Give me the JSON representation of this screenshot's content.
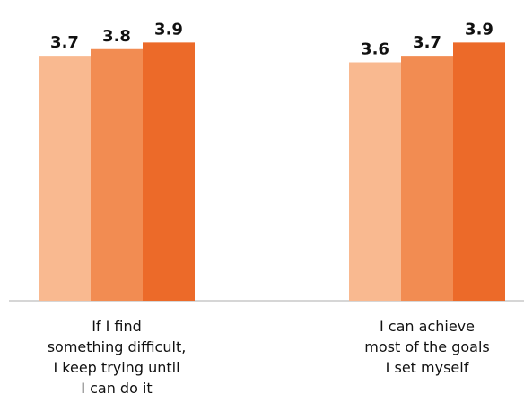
{
  "chart_data": {
    "type": "bar",
    "categories": [
      "If I find\nsomething difficult,\nI keep trying until\nI can do it",
      "I can achieve\nmost of the goals\nI set myself"
    ],
    "series": [
      {
        "color": "#f9b990",
        "values": [
          3.7,
          3.6
        ]
      },
      {
        "color": "#f28c52",
        "values": [
          3.8,
          3.7
        ]
      },
      {
        "color": "#ec6a29",
        "values": [
          3.9,
          3.9
        ]
      }
    ],
    "ylim": [
      0,
      4
    ]
  }
}
